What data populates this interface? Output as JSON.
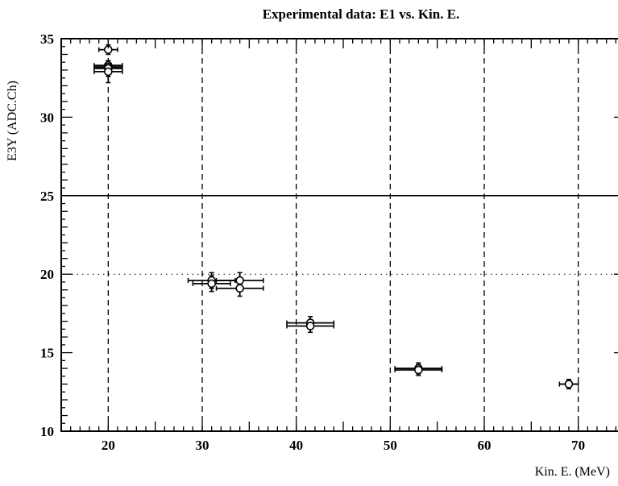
{
  "chart_data": {
    "type": "scatter",
    "title": "Experimental data: E1 vs. Kin. E.",
    "xlabel": "Kin. E. (MeV)",
    "ylabel": "E3Y (ADC.Ch)",
    "xlim": [
      15,
      75
    ],
    "ylim": [
      10,
      35
    ],
    "xticks": [
      20,
      30,
      40,
      50,
      60,
      70
    ],
    "yticks": [
      10,
      15,
      20,
      25,
      30,
      35
    ],
    "xtick_labels": [
      "20",
      "30",
      "40",
      "50",
      "60",
      "70"
    ],
    "ytick_labels": [
      "10",
      "15",
      "20",
      "25",
      "30",
      "35"
    ],
    "grid": {
      "vertical_dashed_at": [
        20,
        30,
        40,
        50,
        60,
        70
      ],
      "horizontal_dotted_at": [
        20
      ],
      "horizontal_solid_at": [
        25
      ]
    },
    "points": [
      {
        "x": 20.0,
        "y": 34.3,
        "xerr": 1.0,
        "yerr": 0.3
      },
      {
        "x": 20.0,
        "y": 33.3,
        "xerr": 1.5,
        "yerr": 0.3
      },
      {
        "x": 20.0,
        "y": 33.2,
        "xerr": 1.5,
        "yerr": 0.3
      },
      {
        "x": 20.0,
        "y": 33.1,
        "xerr": 1.5,
        "yerr": 0.5
      },
      {
        "x": 20.0,
        "y": 32.9,
        "xerr": 1.5,
        "yerr": 0.7
      },
      {
        "x": 31.0,
        "y": 19.6,
        "xerr": 2.5,
        "yerr": 0.5
      },
      {
        "x": 31.0,
        "y": 19.4,
        "xerr": 2.0,
        "yerr": 0.5
      },
      {
        "x": 34.0,
        "y": 19.6,
        "xerr": 2.5,
        "yerr": 0.5
      },
      {
        "x": 34.0,
        "y": 19.1,
        "xerr": 2.5,
        "yerr": 0.5
      },
      {
        "x": 41.5,
        "y": 16.9,
        "xerr": 2.5,
        "yerr": 0.4
      },
      {
        "x": 41.5,
        "y": 16.7,
        "xerr": 2.5,
        "yerr": 0.4
      },
      {
        "x": 53.0,
        "y": 14.0,
        "xerr": 2.5,
        "yerr": 0.35
      },
      {
        "x": 53.0,
        "y": 13.9,
        "xerr": 2.5,
        "yerr": 0.35
      },
      {
        "x": 69.0,
        "y": 13.0,
        "xerr": 1.0,
        "yerr": 0.3
      }
    ]
  }
}
